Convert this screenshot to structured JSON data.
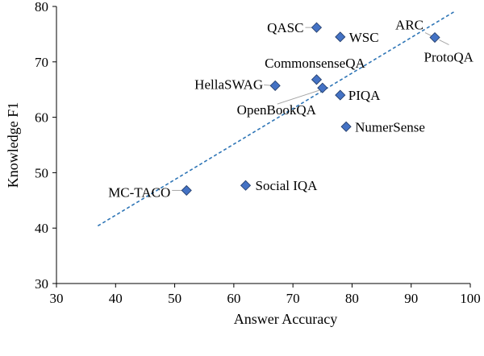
{
  "chart_data": {
    "type": "scatter",
    "title": "",
    "xlabel": "Answer Accuracy",
    "ylabel": "Knowledge F1",
    "xlim": [
      30,
      100
    ],
    "ylim": [
      30,
      80
    ],
    "x_ticks": [
      30,
      40,
      50,
      60,
      70,
      80,
      90,
      100
    ],
    "y_ticks": [
      30,
      40,
      50,
      60,
      70,
      80
    ],
    "grid": false,
    "legend": "none",
    "marker": "diamond",
    "marker_color": "#4472c4",
    "trendline": {
      "style": "dashed",
      "color": "#2e75b6",
      "x": [
        37,
        97.2
      ],
      "y": [
        40.4,
        79
      ]
    },
    "points": [
      {
        "label": "QASC",
        "x": 74,
        "y": 76.2
      },
      {
        "label": "WSC",
        "x": 78,
        "y": 74.5
      },
      {
        "label": "ARC",
        "x": 94,
        "y": 74.4
      },
      {
        "label": "ProtoQA",
        "x": 94.2,
        "y": 74.4
      },
      {
        "label": "CommonsenseQA",
        "x": 74,
        "y": 66.8
      },
      {
        "label": "HellaSWAG",
        "x": 67,
        "y": 65.7
      },
      {
        "label": "OpenBookQA",
        "x": 75,
        "y": 65.3
      },
      {
        "label": "PIQA",
        "x": 78,
        "y": 64
      },
      {
        "label": "NumerSense",
        "x": 79,
        "y": 58.3
      },
      {
        "label": "Social IQA",
        "x": 62,
        "y": 47.7
      },
      {
        "label": "MC-TACO",
        "x": 52,
        "y": 46.8
      }
    ]
  }
}
